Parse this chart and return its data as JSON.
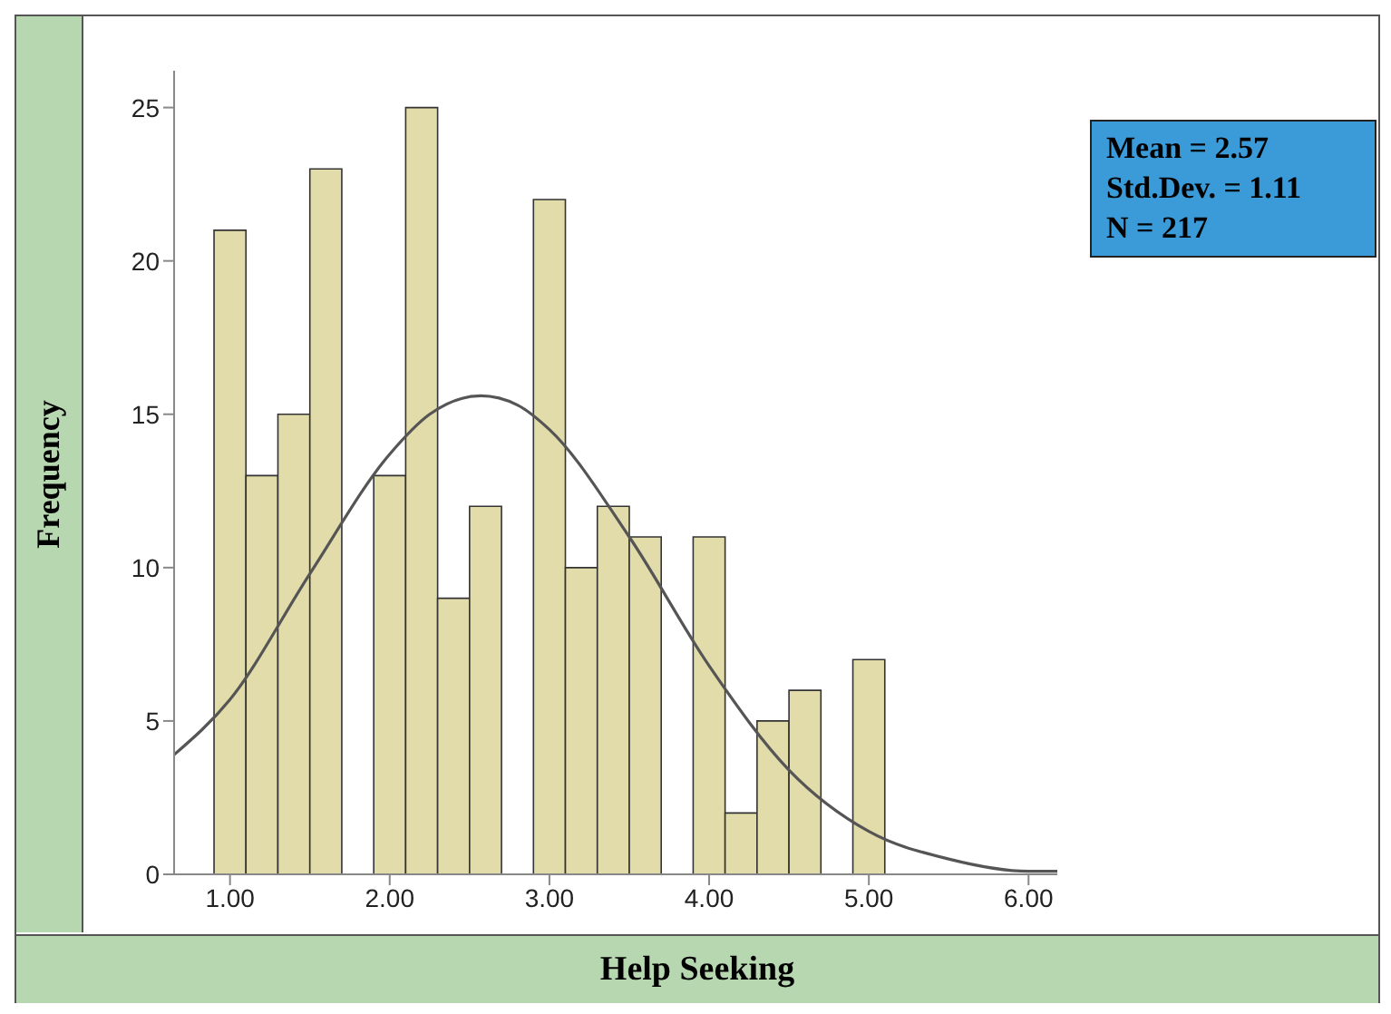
{
  "chart_data": {
    "type": "histogram",
    "xlabel": "Help Seeking",
    "ylabel": "Frequency",
    "bins": [
      0.9,
      1.1,
      1.3,
      1.5,
      1.7,
      1.9,
      2.1,
      2.3,
      2.5,
      2.7,
      2.9,
      3.1,
      3.3,
      3.5,
      3.7,
      3.9,
      4.1,
      4.3,
      4.5,
      4.7,
      4.9,
      5.1
    ],
    "values": [
      21,
      13,
      15,
      23,
      0,
      13,
      25,
      9,
      12,
      0,
      22,
      10,
      12,
      11,
      0,
      11,
      2,
      5,
      6,
      0,
      7
    ],
    "color": "#e2dcaa",
    "series": [
      {
        "type": "line",
        "color": "#555555",
        "x": [
          0.65,
          1,
          1.5,
          2,
          2.25,
          2.57,
          2.8,
          3,
          3.5,
          4,
          4.5,
          5,
          5.5,
          6,
          6.18
        ],
        "values": [
          3.9,
          5.7,
          9.8,
          13.7,
          15,
          15.6,
          15.3,
          14.5,
          11,
          6.8,
          3.4,
          1.4,
          0.5,
          0.1,
          0.1
        ]
      }
    ],
    "xlim": [
      0.65,
      6.18
    ],
    "ylim": [
      0,
      26.2
    ],
    "xticks": [
      {
        "value": 1,
        "label": "1.00"
      },
      {
        "value": 2,
        "label": "2.00"
      },
      {
        "value": 3,
        "label": "3.00"
      },
      {
        "value": 4,
        "label": "4.00"
      },
      {
        "value": 5,
        "label": "5.00"
      },
      {
        "value": 6,
        "label": "6.00"
      }
    ],
    "yticks": [
      0,
      5,
      10,
      15,
      20,
      25
    ],
    "annotations": [
      "Mean = 2.57",
      "Std.Dev. = 1.11",
      "N = 217"
    ],
    "grid": false,
    "legend": false
  }
}
